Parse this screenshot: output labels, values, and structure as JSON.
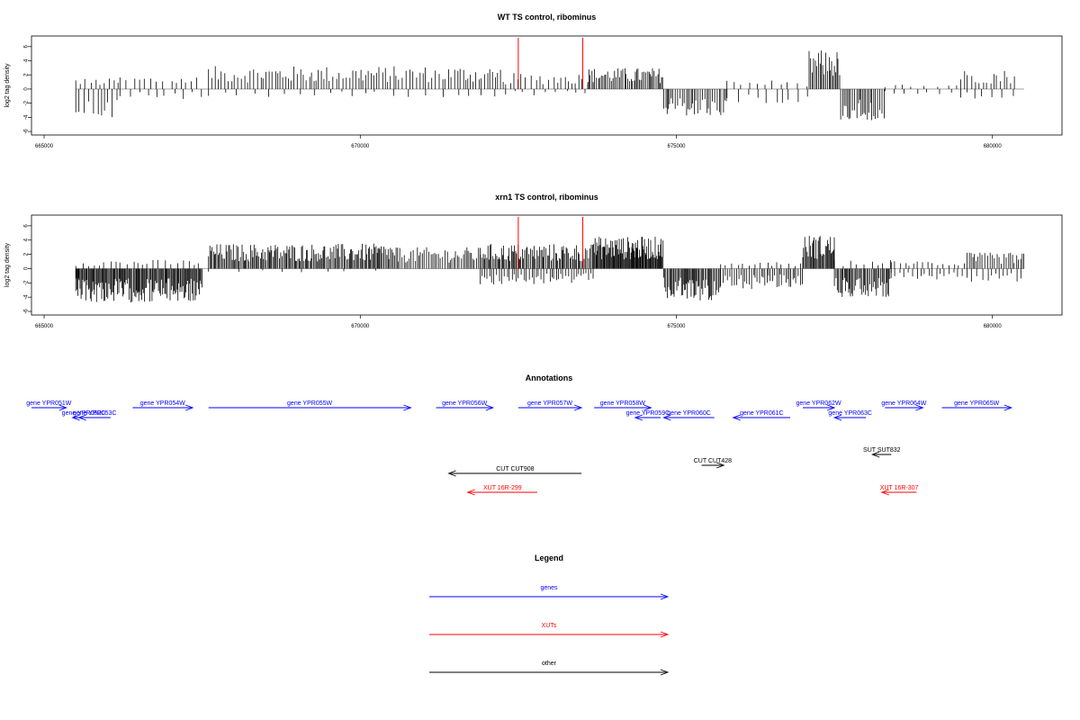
{
  "panels": [
    {
      "title": "WT TS control, ribominus",
      "ylabel": "log2 tag density",
      "xlim": [
        664800,
        681100
      ],
      "ylim": [
        -6.5,
        7.5
      ],
      "yticks": [
        -6,
        -4,
        -2,
        0,
        2,
        4,
        6
      ],
      "xticks": [
        665000,
        670000,
        675000,
        680000
      ],
      "xtick_labels": [
        "665000",
        "670000",
        "675000",
        "680000"
      ],
      "baseline_range": [
        665500,
        680500
      ],
      "marker_x": [
        672500,
        673520
      ],
      "marker_color": "#ff0000",
      "density_segments": [
        {
          "from": 665500,
          "to": 666200,
          "step": 60,
          "sign": -1,
          "amp": 3.5
        },
        {
          "from": 665500,
          "to": 666200,
          "step": 80,
          "sign": 1,
          "amp": 1.2
        },
        {
          "from": 666200,
          "to": 667500,
          "step": 110,
          "sign": 1,
          "amp": 1.5
        },
        {
          "from": 666200,
          "to": 667500,
          "step": 130,
          "sign": -1,
          "amp": 1.2
        },
        {
          "from": 667600,
          "to": 672300,
          "step": 45,
          "sign": 1,
          "amp": 2.6
        },
        {
          "from": 667600,
          "to": 672300,
          "step": 220,
          "sign": -1,
          "amp": 0.9
        },
        {
          "from": 672300,
          "to": 673600,
          "step": 70,
          "sign": 1,
          "amp": 1.8
        },
        {
          "from": 672300,
          "to": 673600,
          "step": 160,
          "sign": -1,
          "amp": 0.8
        },
        {
          "from": 673600,
          "to": 674800,
          "step": 25,
          "sign": 1,
          "amp": 2.4
        },
        {
          "from": 674800,
          "to": 675800,
          "step": 30,
          "sign": -1,
          "amp": 3.2
        },
        {
          "from": 675800,
          "to": 677100,
          "step": 130,
          "sign": 1,
          "amp": 1.0
        },
        {
          "from": 675800,
          "to": 677100,
          "step": 130,
          "sign": -1,
          "amp": 1.6
        },
        {
          "from": 677100,
          "to": 677600,
          "step": 22,
          "sign": 1,
          "amp": 4.4
        },
        {
          "from": 677600,
          "to": 678300,
          "step": 28,
          "sign": -1,
          "amp": 3.6
        },
        {
          "from": 678300,
          "to": 679500,
          "step": 170,
          "sign": 1,
          "amp": 0.7
        },
        {
          "from": 678300,
          "to": 679500,
          "step": 190,
          "sign": -1,
          "amp": 0.8
        },
        {
          "from": 679500,
          "to": 680400,
          "step": 55,
          "sign": 1,
          "amp": 2.2
        },
        {
          "from": 679500,
          "to": 680400,
          "step": 140,
          "sign": -1,
          "amp": 1.2
        }
      ]
    },
    {
      "title": "xrn1 TS control, ribominus",
      "ylabel": "log2 tag density",
      "xlim": [
        664800,
        681100
      ],
      "ylim": [
        -6.5,
        7.5
      ],
      "yticks": [
        -6,
        -4,
        -2,
        0,
        2,
        4,
        6
      ],
      "xticks": [
        665000,
        670000,
        675000,
        680000
      ],
      "xtick_labels": [
        "665000",
        "670000",
        "675000",
        "680000"
      ],
      "baseline_range": [
        665500,
        680500
      ],
      "marker_x": [
        672500,
        673520
      ],
      "marker_color": "#ff0000",
      "density_segments": [
        {
          "from": 665500,
          "to": 667500,
          "step": 15,
          "sign": -1,
          "amp": 3.8
        },
        {
          "from": 665500,
          "to": 667500,
          "step": 90,
          "sign": 1,
          "amp": 1.0
        },
        {
          "from": 667600,
          "to": 670600,
          "step": 20,
          "sign": 1,
          "amp": 2.8
        },
        {
          "from": 667600,
          "to": 670600,
          "step": 400,
          "sign": -1,
          "amp": 0.4
        },
        {
          "from": 670600,
          "to": 671900,
          "step": 30,
          "sign": 1,
          "amp": 2.4
        },
        {
          "from": 671900,
          "to": 673700,
          "step": 20,
          "sign": 1,
          "amp": 2.8
        },
        {
          "from": 671900,
          "to": 673700,
          "step": 40,
          "sign": -1,
          "amp": 1.8
        },
        {
          "from": 673700,
          "to": 674800,
          "step": 12,
          "sign": 1,
          "amp": 3.6
        },
        {
          "from": 674800,
          "to": 675700,
          "step": 18,
          "sign": -1,
          "amp": 3.6
        },
        {
          "from": 675700,
          "to": 677000,
          "step": 90,
          "sign": 1,
          "amp": 1.0
        },
        {
          "from": 675700,
          "to": 677000,
          "step": 30,
          "sign": -1,
          "amp": 2.3
        },
        {
          "from": 677000,
          "to": 677500,
          "step": 15,
          "sign": 1,
          "amp": 3.8
        },
        {
          "from": 677500,
          "to": 678400,
          "step": 20,
          "sign": -1,
          "amp": 3.2
        },
        {
          "from": 677500,
          "to": 678400,
          "step": 100,
          "sign": 1,
          "amp": 1.0
        },
        {
          "from": 678400,
          "to": 679600,
          "step": 70,
          "sign": 1,
          "amp": 0.9
        },
        {
          "from": 678400,
          "to": 679600,
          "step": 60,
          "sign": -1,
          "amp": 1.3
        },
        {
          "from": 679600,
          "to": 680500,
          "step": 35,
          "sign": 1,
          "amp": 1.8
        },
        {
          "from": 679600,
          "to": 680500,
          "step": 80,
          "sign": -1,
          "amp": 1.5
        }
      ]
    }
  ],
  "annotations": {
    "title": "Annotations",
    "colors": {
      "gene": "#0000ff",
      "xut": "#ff0000",
      "other": "#000000"
    },
    "features": [
      {
        "label": "gene YPR051W",
        "type": "gene",
        "start": 664800,
        "end": 665350,
        "strand": "+",
        "row": 0
      },
      {
        "label": "gene YPR052C",
        "type": "gene",
        "start": 665450,
        "end": 665800,
        "strand": "-",
        "row": 1
      },
      {
        "label": "gene YPR053C",
        "type": "gene",
        "start": 665550,
        "end": 666050,
        "strand": "-",
        "row": 1
      },
      {
        "label": "gene YPR054W",
        "type": "gene",
        "start": 666400,
        "end": 667350,
        "strand": "+",
        "row": 0
      },
      {
        "label": "gene YPR055W",
        "type": "gene",
        "start": 667600,
        "end": 670800,
        "strand": "+",
        "row": 0
      },
      {
        "label": "gene YPR056W",
        "type": "gene",
        "start": 671200,
        "end": 672100,
        "strand": "+",
        "row": 0
      },
      {
        "label": "gene YPR057W",
        "type": "gene",
        "start": 672500,
        "end": 673500,
        "strand": "+",
        "row": 0
      },
      {
        "label": "gene YPR058W",
        "type": "gene",
        "start": 673700,
        "end": 674600,
        "strand": "+",
        "row": 0
      },
      {
        "label": "gene YPR059C",
        "type": "gene",
        "start": 674350,
        "end": 674750,
        "strand": "-",
        "row": 1
      },
      {
        "label": "gene YPR060C",
        "type": "gene",
        "start": 674800,
        "end": 675600,
        "strand": "-",
        "row": 1
      },
      {
        "label": "gene YPR061C",
        "type": "gene",
        "start": 675900,
        "end": 676800,
        "strand": "-",
        "row": 1
      },
      {
        "label": "gene YPR062W",
        "type": "gene",
        "start": 677000,
        "end": 677500,
        "strand": "+",
        "row": 0
      },
      {
        "label": "gene YPR063C",
        "type": "gene",
        "start": 677500,
        "end": 678000,
        "strand": "-",
        "row": 1
      },
      {
        "label": "gene YPR064W",
        "type": "gene",
        "start": 678300,
        "end": 678900,
        "strand": "+",
        "row": 0
      },
      {
        "label": "gene YPR065W",
        "type": "gene",
        "start": 679200,
        "end": 680300,
        "strand": "+",
        "row": 0
      },
      {
        "label": "SUT SUT832",
        "type": "other",
        "start": 678100,
        "end": 678400,
        "strand": "-",
        "row": 2
      },
      {
        "label": "CUT CUT428",
        "type": "other",
        "start": 675400,
        "end": 675750,
        "strand": "+",
        "row": 3
      },
      {
        "label": "CUT CUT908",
        "type": "other",
        "start": 671400,
        "end": 673500,
        "strand": "-",
        "row": 4
      },
      {
        "label": "XUT 16R-299",
        "type": "xut",
        "start": 671700,
        "end": 672800,
        "strand": "-",
        "row": 5
      },
      {
        "label": "XUT 16R-307",
        "type": "xut",
        "start": 678250,
        "end": 678800,
        "strand": "-",
        "row": 5
      }
    ]
  },
  "legend": {
    "title": "Legend",
    "entries": [
      {
        "label": "genes",
        "type": "gene"
      },
      {
        "label": "XUTs",
        "type": "xut"
      },
      {
        "label": "other",
        "type": "other"
      }
    ]
  }
}
